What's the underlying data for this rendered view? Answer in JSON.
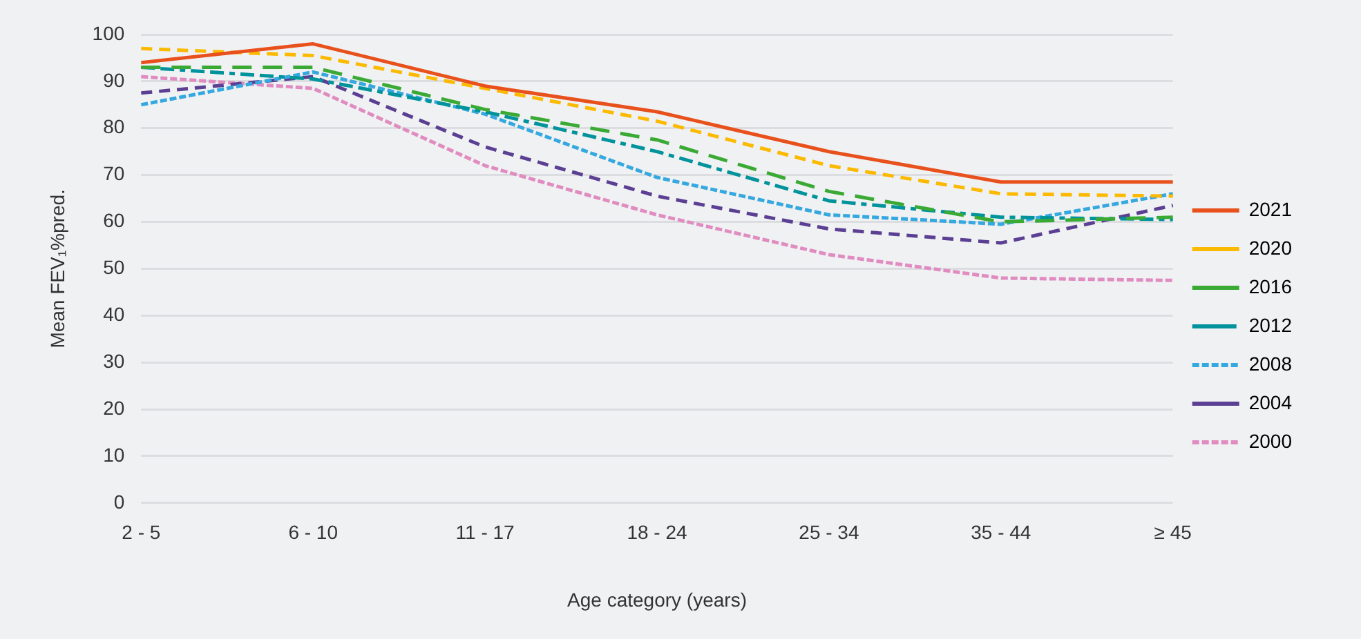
{
  "chart_data": {
    "type": "line",
    "xlabel": "Age category (years)",
    "ylabel": "Mean FEV₁%pred.",
    "categories": [
      "2 - 5",
      "6 - 10",
      "11 - 17",
      "18 - 24",
      "25 - 34",
      "35 - 44",
      "≥ 45"
    ],
    "ylim": [
      0,
      100
    ],
    "yticks": [
      0,
      10,
      20,
      30,
      40,
      50,
      60,
      70,
      80,
      90,
      100
    ],
    "grid": "y",
    "legend": "right",
    "marker": "none",
    "series": [
      {
        "name": "2021",
        "color": "#e8501c",
        "line_style": "solid",
        "values": [
          94,
          98,
          89,
          83.5,
          75,
          68.5,
          68.5
        ]
      },
      {
        "name": "2020",
        "color": "#fbb900",
        "line_style": "dashed",
        "values": [
          97,
          95.5,
          88.5,
          81.5,
          72,
          66,
          65.5
        ]
      },
      {
        "name": "2016",
        "color": "#3aaa35",
        "line_style": "dashed",
        "values": [
          93,
          93,
          84,
          77.5,
          66.5,
          60,
          61
        ]
      },
      {
        "name": "2012",
        "color": "#00939b",
        "line_style": "dashed",
        "values": [
          93,
          90.5,
          83.5,
          75,
          64.5,
          61,
          60.5
        ]
      },
      {
        "name": "2008",
        "color": "#35a8e0",
        "line_style": "dotted",
        "values": [
          85,
          92,
          83,
          69.5,
          61.5,
          59.5,
          66
        ]
      },
      {
        "name": "2004",
        "color": "#5b3f93",
        "line_style": "dashed",
        "values": [
          87.5,
          91,
          76,
          65.5,
          58.5,
          55.5,
          63.5
        ]
      },
      {
        "name": "2000",
        "color": "#e08cc0",
        "line_style": "dotted",
        "values": [
          91,
          88.5,
          72,
          61.5,
          53,
          48,
          47.5
        ]
      }
    ]
  }
}
